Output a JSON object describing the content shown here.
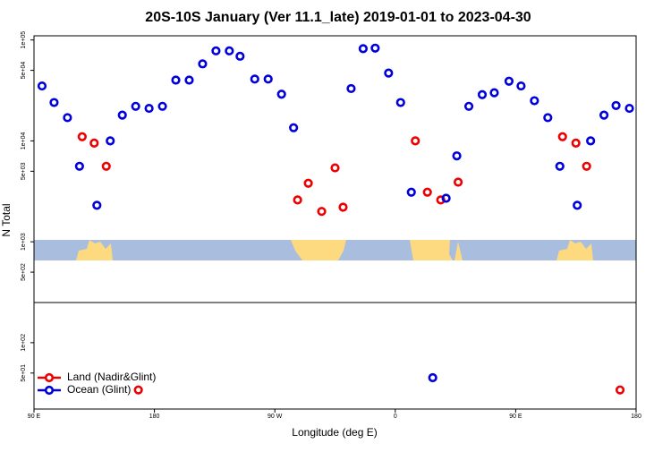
{
  "chart_data": {
    "type": "scatter",
    "title": "20S-10S January (Ver 11.1_late)   2019-01-01 to 2023-04-30",
    "x_label": "Longitude (deg E)",
    "y_label": "N Total",
    "ylog": true,
    "xlim": [
      90,
      540
    ],
    "ylim": [
      22,
      110000
    ],
    "xticks": [
      {
        "value": 90,
        "label": "90 E"
      },
      180,
      {
        "value": 270,
        "label": "90 W"
      },
      {
        "value": 360,
        "label": "0"
      },
      {
        "value": 450,
        "label": "90 E"
      },
      {
        "value": 540,
        "label": "180"
      }
    ],
    "yticks": [
      {
        "value": 100000,
        "label": "1e+05"
      },
      {
        "value": 50000,
        "label": "5e+04"
      },
      {
        "value": 10000,
        "label": "1e+04"
      },
      {
        "value": 5000,
        "label": "5e+03"
      },
      {
        "value": 1000,
        "label": "1e+03"
      },
      {
        "value": 500,
        "label": "5e+02"
      },
      {
        "value": 100,
        "label": "1e+02"
      },
      {
        "value": 50,
        "label": "5e+01"
      }
    ],
    "legend": "bottom-left",
    "series": [
      {
        "name": "Land (Nadir&Glint)",
        "color": "#ee0000",
        "x": [
          126,
          135,
          144,
          287,
          295,
          305,
          315,
          321,
          375,
          384,
          394,
          407,
          485,
          495,
          503,
          528,
          168
        ],
        "values": [
          11000,
          9500,
          5600,
          2600,
          3800,
          2000,
          5400,
          2200,
          10000,
          3100,
          2600,
          3900,
          11000,
          9500,
          5600,
          34,
          34
        ]
      },
      {
        "name": "Ocean (Glint)",
        "color": "#0000dd",
        "x": [
          96,
          105,
          115,
          124,
          137,
          147,
          156,
          166,
          176,
          186,
          196,
          206,
          216,
          226,
          236,
          244,
          255,
          265,
          275,
          284,
          327,
          336,
          345,
          355,
          364,
          372,
          388,
          398,
          406,
          415,
          425,
          434,
          445,
          454,
          464,
          474,
          483,
          496,
          506,
          516,
          525,
          535
        ],
        "values": [
          35000,
          24000,
          17000,
          5600,
          2300,
          10000,
          18000,
          22000,
          21000,
          22000,
          40000,
          40000,
          58000,
          78000,
          78000,
          69000,
          41000,
          41000,
          29000,
          13500,
          33000,
          82000,
          83000,
          47000,
          24000,
          3100,
          45,
          2700,
          7100,
          22000,
          28700,
          30000,
          39000,
          35000,
          25000,
          17000,
          5600,
          2300,
          10000,
          18000,
          22400,
          21000
        ]
      }
    ]
  }
}
